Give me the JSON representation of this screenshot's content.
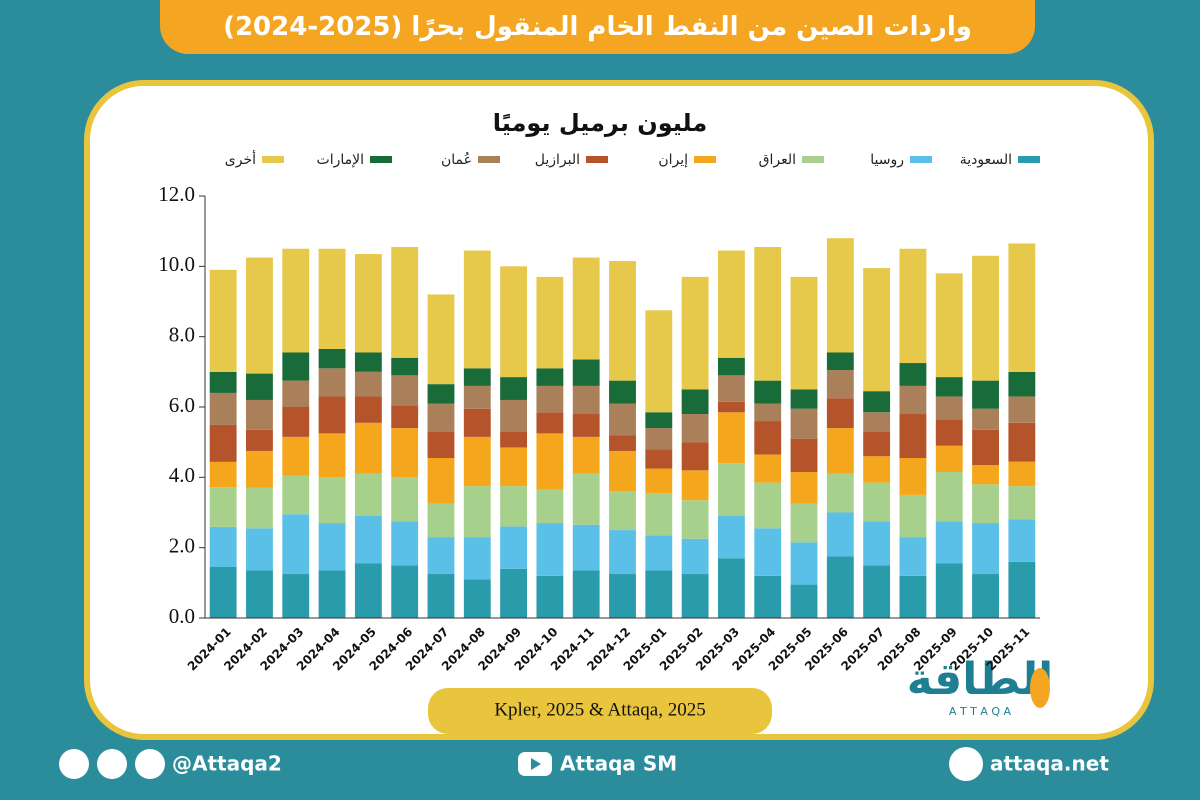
{
  "header": {
    "title": "واردات الصين من النفط الخام المنقول بحرًا (2025-2024)"
  },
  "chart_data": {
    "type": "stacked_bar",
    "title": "مليون برميل يوميًا",
    "source": "Kpler, 2025 & Attaqa, 2025",
    "categories": [
      "2024-01",
      "2024-02",
      "2024-03",
      "2024-04",
      "2024-05",
      "2024-06",
      "2024-07",
      "2024-08",
      "2024-09",
      "2024-10",
      "2024-11",
      "2024-12",
      "2025-01",
      "2025-02",
      "2025-03",
      "2025-04",
      "2025-05",
      "2025-06",
      "2025-07",
      "2025-08",
      "2025-09",
      "2025-10",
      "2025-11"
    ],
    "series": [
      {
        "name": "السعودية",
        "color": "#2a9bab",
        "values": [
          1.45,
          1.35,
          1.25,
          1.35,
          1.55,
          1.5,
          1.25,
          1.1,
          1.4,
          1.2,
          1.35,
          1.25,
          1.35,
          1.25,
          1.7,
          1.2,
          0.95,
          1.75,
          1.5,
          1.2,
          1.55,
          1.25,
          1.6
        ]
      },
      {
        "name": "روسيا",
        "color": "#5bc0e8",
        "values": [
          1.14,
          1.2,
          1.7,
          1.35,
          1.35,
          1.25,
          1.05,
          1.2,
          1.2,
          1.5,
          1.3,
          1.25,
          1.0,
          1.0,
          1.2,
          1.35,
          1.2,
          1.25,
          1.25,
          1.1,
          1.2,
          1.45,
          1.2
        ]
      },
      {
        "name": "العراق",
        "color": "#a8d08d",
        "values": [
          1.13,
          1.15,
          1.1,
          1.3,
          1.2,
          1.25,
          0.95,
          1.45,
          1.15,
          0.95,
          1.45,
          1.1,
          1.2,
          1.1,
          1.5,
          1.3,
          1.1,
          1.1,
          1.1,
          1.2,
          1.4,
          1.1,
          0.95
        ]
      },
      {
        "name": "إيران",
        "color": "#f4a71d",
        "values": [
          0.72,
          1.05,
          1.1,
          1.25,
          1.45,
          1.4,
          1.3,
          1.4,
          1.1,
          1.6,
          1.05,
          1.15,
          0.7,
          0.85,
          1.45,
          0.8,
          0.9,
          1.3,
          0.75,
          1.05,
          0.75,
          0.55,
          0.7
        ]
      },
      {
        "name": "البرازيل",
        "color": "#b5532a",
        "values": [
          1.05,
          0.6,
          0.85,
          1.05,
          0.75,
          0.65,
          0.75,
          0.8,
          0.45,
          0.6,
          0.65,
          0.45,
          0.55,
          0.8,
          0.3,
          0.95,
          0.95,
          0.85,
          0.7,
          1.25,
          0.75,
          1.0,
          1.1
        ]
      },
      {
        "name": "عُمان",
        "color": "#a9805a",
        "values": [
          0.91,
          0.85,
          0.75,
          0.8,
          0.7,
          0.85,
          0.8,
          0.65,
          0.9,
          0.75,
          0.8,
          0.9,
          0.6,
          0.8,
          0.75,
          0.5,
          0.85,
          0.8,
          0.55,
          0.8,
          0.65,
          0.6,
          0.75
        ]
      },
      {
        "name": "الإمارات",
        "color": "#1a6b3a",
        "values": [
          0.6,
          0.75,
          0.8,
          0.55,
          0.55,
          0.5,
          0.55,
          0.5,
          0.65,
          0.5,
          0.75,
          0.65,
          0.45,
          0.7,
          0.5,
          0.65,
          0.55,
          0.5,
          0.6,
          0.65,
          0.55,
          0.8,
          0.7
        ]
      },
      {
        "name": "أخرى",
        "color": "#e6c84a",
        "values": [
          2.9,
          3.3,
          2.95,
          2.85,
          2.8,
          3.15,
          2.55,
          3.35,
          3.15,
          2.6,
          2.9,
          3.4,
          2.9,
          3.2,
          3.05,
          3.8,
          3.2,
          3.25,
          3.5,
          3.25,
          2.95,
          3.55,
          3.65
        ]
      }
    ],
    "ylim": [
      0,
      12
    ],
    "yticks": [
      {
        "value": 0,
        "label": "0.0"
      },
      {
        "value": 2,
        "label": "2.0"
      },
      {
        "value": 4,
        "label": "4.0"
      },
      {
        "value": 6,
        "label": "6.0"
      },
      {
        "value": 8,
        "label": "8.0"
      },
      {
        "value": 10,
        "label": "10.0"
      },
      {
        "value": 12,
        "label": "12.0"
      }
    ]
  },
  "branding": {
    "logo": "الطاقة",
    "logo_latin": "A T T A Q A"
  },
  "footer": {
    "handle": "@Attaqa2",
    "youtube": "Attaqa SM",
    "website": "attaqa.net"
  }
}
